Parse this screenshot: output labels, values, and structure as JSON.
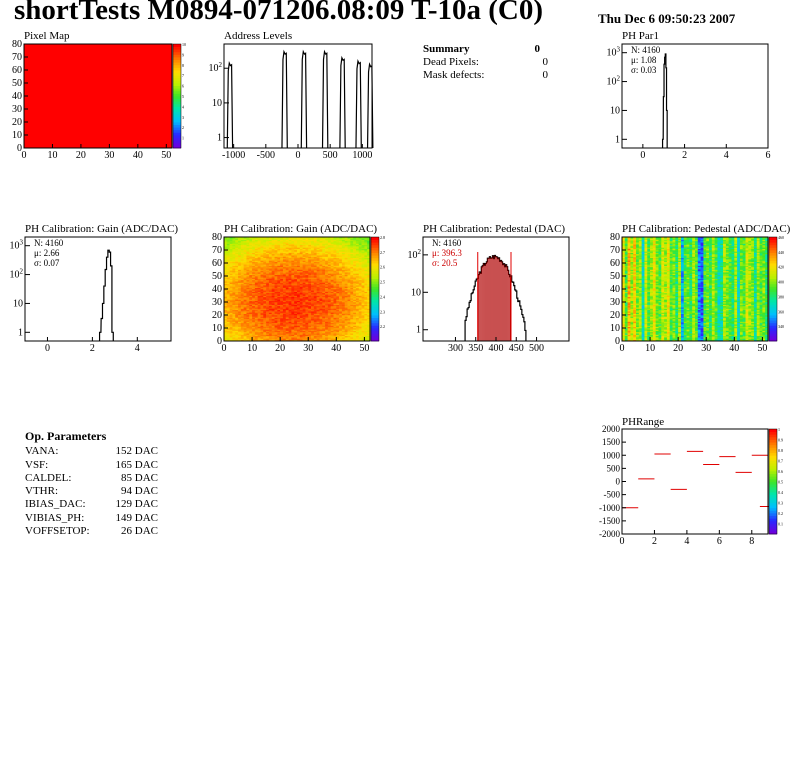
{
  "header": {
    "title": "shortTests M0894-071206.08:09 T-10a (C0)",
    "date": "Thu Dec  6 09:50:23 2007"
  },
  "summary": {
    "title": "Summary",
    "value": "0",
    "rows": [
      {
        "label": "Dead Pixels:",
        "value": "0"
      },
      {
        "label": "Mask defects:",
        "value": "0"
      }
    ]
  },
  "op_params": {
    "title": "Op. Parameters",
    "rows": [
      {
        "label": "VANA:",
        "value": "152 DAC"
      },
      {
        "label": "VSF:",
        "value": "165 DAC"
      },
      {
        "label": "CALDEL:",
        "value": "85 DAC"
      },
      {
        "label": "VTHR:",
        "value": "94 DAC"
      },
      {
        "label": "IBIAS_DAC:",
        "value": "129 DAC"
      },
      {
        "label": "VIBIAS_PH:",
        "value": "149 DAC"
      },
      {
        "label": "VOFFSETOP:",
        "value": "26 DAC"
      }
    ]
  },
  "colors": {
    "hist_fill_pedestal": "#b00000",
    "mean_line": "#e00000",
    "stat_red": "#cc0000",
    "pixel_map_fill": "#ff0000"
  },
  "chart_data": [
    {
      "id": "pixel_map",
      "type": "heatmap",
      "title": "Pixel Map",
      "xlim": [
        0,
        52
      ],
      "ylim": [
        0,
        80
      ],
      "x_ticks": [
        "0",
        "10",
        "20",
        "30",
        "40",
        "50"
      ],
      "y_ticks": [
        "0",
        "10",
        "20",
        "30",
        "40",
        "50",
        "60",
        "70",
        "80"
      ],
      "z_range": [
        0,
        10
      ],
      "uniform_value": 10,
      "palette_ticks": [
        "1",
        "2",
        "3",
        "4",
        "5",
        "6",
        "7",
        "8",
        "9",
        "10"
      ]
    },
    {
      "id": "address_levels",
      "type": "bar",
      "title": "Address Levels",
      "xlim": [
        -1150,
        1150
      ],
      "y_scale": "log",
      "ylim": [
        0.5,
        500
      ],
      "x_ticks": [
        "-1000",
        "-500",
        "0",
        "500",
        "1000"
      ],
      "y_ticks": [
        "1",
        "10",
        "10^2"
      ],
      "peaks": [
        {
          "center": -1050,
          "height": 140
        },
        {
          "center": -200,
          "height": 300
        },
        {
          "center": 100,
          "height": 300
        },
        {
          "center": 430,
          "height": 300
        },
        {
          "center": 700,
          "height": 200
        },
        {
          "center": 950,
          "height": 160
        },
        {
          "center": 1130,
          "height": 130
        }
      ]
    },
    {
      "id": "ph_par1",
      "type": "bar",
      "title": "PH Par1",
      "xlim": [
        -1,
        6
      ],
      "y_scale": "log",
      "ylim": [
        0.5,
        2000
      ],
      "x_ticks": [
        "0",
        "2",
        "4",
        "6"
      ],
      "y_ticks": [
        "1",
        "10",
        "10^2",
        "10^3"
      ],
      "stats": [
        {
          "label": "N:",
          "value": "4160"
        },
        {
          "label": "μ:",
          "value": "1.08"
        },
        {
          "label": "σ:",
          "value": "0.03"
        }
      ],
      "bins": [
        [
          0.96,
          1
        ],
        [
          1.0,
          30
        ],
        [
          1.03,
          400
        ],
        [
          1.06,
          700
        ],
        [
          1.09,
          900
        ],
        [
          1.12,
          300
        ],
        [
          1.15,
          10
        ]
      ]
    },
    {
      "id": "gain_1d",
      "type": "bar",
      "title": "PH Calibration: Gain (ADC/DAC)",
      "xlim": [
        -1,
        5.5
      ],
      "y_scale": "log",
      "ylim": [
        0.5,
        2000
      ],
      "x_ticks": [
        "0",
        "2",
        "4"
      ],
      "y_ticks": [
        "1",
        "10",
        "10^2",
        "10^3"
      ],
      "stats": [
        {
          "label": "N:",
          "value": "4160"
        },
        {
          "label": "μ:",
          "value": "2.66"
        },
        {
          "label": "σ:",
          "value": "0.07"
        }
      ],
      "bins": [
        [
          2.35,
          1
        ],
        [
          2.42,
          3
        ],
        [
          2.48,
          10
        ],
        [
          2.54,
          40
        ],
        [
          2.6,
          150
        ],
        [
          2.66,
          400
        ],
        [
          2.72,
          700
        ],
        [
          2.78,
          600
        ],
        [
          2.84,
          200
        ],
        [
          2.9,
          1
        ]
      ]
    },
    {
      "id": "gain_2d",
      "type": "heatmap",
      "title": "PH Calibration: Gain (ADC/DAC)",
      "xlim": [
        0,
        52
      ],
      "ylim": [
        0,
        80
      ],
      "x_ticks": [
        "0",
        "10",
        "20",
        "30",
        "40",
        "50"
      ],
      "y_ticks": [
        "0",
        "10",
        "20",
        "30",
        "40",
        "50",
        "60",
        "70",
        "80"
      ],
      "z_range": [
        2.1,
        2.8
      ],
      "center": [
        24,
        30
      ],
      "palette_ticks": [
        "2.2",
        "2.3",
        "2.4",
        "2.5",
        "2.6",
        "2.7",
        "2.8"
      ]
    },
    {
      "id": "pedestal_1d",
      "type": "bar",
      "title": "PH Calibration: Pedestal (DAC)",
      "xlim": [
        220,
        580
      ],
      "y_scale": "log",
      "ylim": [
        0.5,
        300
      ],
      "x_ticks": [
        "300",
        "350",
        "400",
        "450",
        "500"
      ],
      "y_ticks": [
        "1",
        "10",
        "10^2"
      ],
      "stats": [
        {
          "label": "N:",
          "value": "4160"
        },
        {
          "label": "μ:",
          "value": "396.3"
        },
        {
          "label": "σ:",
          "value": "20.5"
        }
      ],
      "mean": 396.3,
      "sigma": 20.5,
      "markers": [
        355,
        437
      ],
      "peak_height": 90,
      "range": [
        325,
        500
      ]
    },
    {
      "id": "pedestal_2d",
      "type": "heatmap",
      "title": "PH Calibration: Pedestal (ADC/DAC)",
      "xlim": [
        0,
        52
      ],
      "ylim": [
        0,
        80
      ],
      "x_ticks": [
        "0",
        "10",
        "20",
        "30",
        "40",
        "50"
      ],
      "y_ticks": [
        "0",
        "10",
        "20",
        "30",
        "40",
        "50",
        "60",
        "70",
        "80"
      ],
      "z_range": [
        320,
        460
      ],
      "palette_ticks": [
        "340",
        "360",
        "380",
        "400",
        "420",
        "440",
        "460"
      ],
      "column_levels": [
        0.7,
        0.5,
        0.8,
        0.6,
        0.75,
        0.55,
        0.6,
        0.35,
        0.65,
        0.5,
        0.6,
        0.7,
        0.55,
        0.5,
        0.65,
        0.6,
        0.7,
        0.5,
        0.55,
        0.45,
        0.6,
        0.25,
        0.5,
        0.55,
        0.45,
        0.6,
        0.5,
        0.2,
        0.15,
        0.5,
        0.55,
        0.45,
        0.6,
        0.5,
        0.35,
        0.4,
        0.6,
        0.55,
        0.5,
        0.45,
        0.6,
        0.35,
        0.55,
        0.5,
        0.65,
        0.6,
        0.55,
        0.4,
        0.6,
        0.5,
        0.55,
        0.45
      ]
    },
    {
      "id": "ph_range",
      "type": "scatter",
      "title": "PHRange",
      "xlim": [
        0,
        9
      ],
      "ylim": [
        -2000,
        2000
      ],
      "x_ticks": [
        "0",
        "2",
        "4",
        "6",
        "8"
      ],
      "y_ticks": [
        "2000",
        "1500",
        "1000",
        "500",
        "0",
        "-500",
        "-1000",
        "-1500",
        "-2000"
      ],
      "palette_ticks": [
        "0.1",
        "0.2",
        "0.3",
        "0.4",
        "0.5",
        "0.6",
        "0.7",
        "0.8",
        "0.9",
        "1"
      ],
      "segments": [
        [
          0,
          -1000
        ],
        [
          1,
          100
        ],
        [
          2,
          1050
        ],
        [
          3,
          -300
        ],
        [
          4,
          1150
        ],
        [
          5,
          650
        ],
        [
          6,
          950
        ],
        [
          7,
          350
        ],
        [
          8,
          1000
        ],
        [
          8.5,
          -950
        ]
      ]
    }
  ]
}
